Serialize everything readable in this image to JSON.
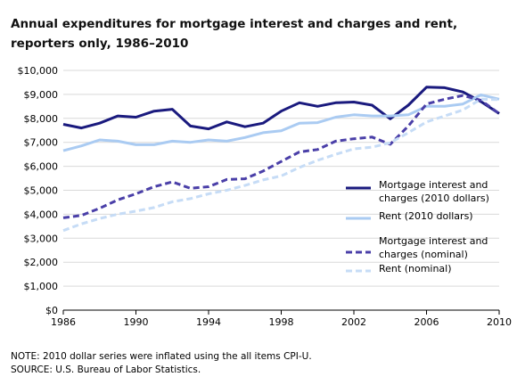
{
  "chart_data": {
    "type": "line",
    "title_lines": [
      "Annual expenditures for mortgage interest and charges and rent,",
      "reporters only, 1986–2010"
    ],
    "xlabel": "",
    "ylabel": "",
    "x": [
      1986,
      1987,
      1988,
      1989,
      1990,
      1991,
      1992,
      1993,
      1994,
      1995,
      1996,
      1997,
      1998,
      1999,
      2000,
      2001,
      2002,
      2003,
      2004,
      2005,
      2006,
      2007,
      2008,
      2009,
      2010
    ],
    "x_ticks": [
      1986,
      1990,
      1994,
      1998,
      2002,
      2006,
      2010
    ],
    "xlim": [
      1986,
      2010
    ],
    "ylim": [
      0,
      10000
    ],
    "y_ticks": [
      0,
      1000,
      2000,
      3000,
      4000,
      5000,
      6000,
      7000,
      8000,
      9000,
      10000
    ],
    "y_tick_labels": [
      "$0",
      "$1,000",
      "$2,000",
      "$3,000",
      "$4,000",
      "$5,000",
      "$6,000",
      "$7,000",
      "$8,000",
      "$9,000",
      "$10,000"
    ],
    "grid": "horizontal",
    "legend_position": "right",
    "series": [
      {
        "name_lines": [
          "Mortgage interest and",
          "charges (2010 dollars)"
        ],
        "color": "#1a1a7e",
        "style": "solid",
        "values": [
          7750,
          7600,
          7800,
          8100,
          8050,
          8300,
          8380,
          7680,
          7560,
          7850,
          7650,
          7800,
          8300,
          8650,
          8500,
          8650,
          8680,
          8550,
          7980,
          8550,
          9300,
          9280,
          9100,
          8700,
          8200
        ]
      },
      {
        "name_lines": [
          "Rent (2010 dollars)"
        ],
        "color": "#aacbf2",
        "style": "solid",
        "values": [
          6650,
          6850,
          7100,
          7050,
          6900,
          6900,
          7050,
          7000,
          7100,
          7050,
          7200,
          7400,
          7480,
          7800,
          7820,
          8050,
          8150,
          8100,
          8100,
          8150,
          8500,
          8500,
          8600,
          8980,
          8800
        ]
      },
      {
        "name_lines": [
          "Mortgage interest and",
          "charges (nominal)"
        ],
        "color": "#4a3fa8",
        "style": "dashed",
        "values": [
          3850,
          3950,
          4250,
          4600,
          4850,
          5150,
          5350,
          5080,
          5150,
          5450,
          5480,
          5800,
          6200,
          6600,
          6700,
          7050,
          7150,
          7220,
          6920,
          7680,
          8600,
          8800,
          8950,
          8750,
          8200
        ]
      },
      {
        "name_lines": [
          "Rent (nominal)"
        ],
        "color": "#c6dcf6",
        "style": "dashed",
        "values": [
          3320,
          3600,
          3820,
          4000,
          4130,
          4280,
          4520,
          4650,
          4850,
          5000,
          5200,
          5430,
          5600,
          5950,
          6250,
          6500,
          6730,
          6800,
          6980,
          7400,
          7850,
          8100,
          8350,
          8800,
          8780
        ]
      }
    ]
  },
  "notes": {
    "note": "NOTE: 2010 dollar series were inflated using the all items CPI-U.",
    "source": "SOURCE: U.S. Bureau of Labor Statistics."
  }
}
